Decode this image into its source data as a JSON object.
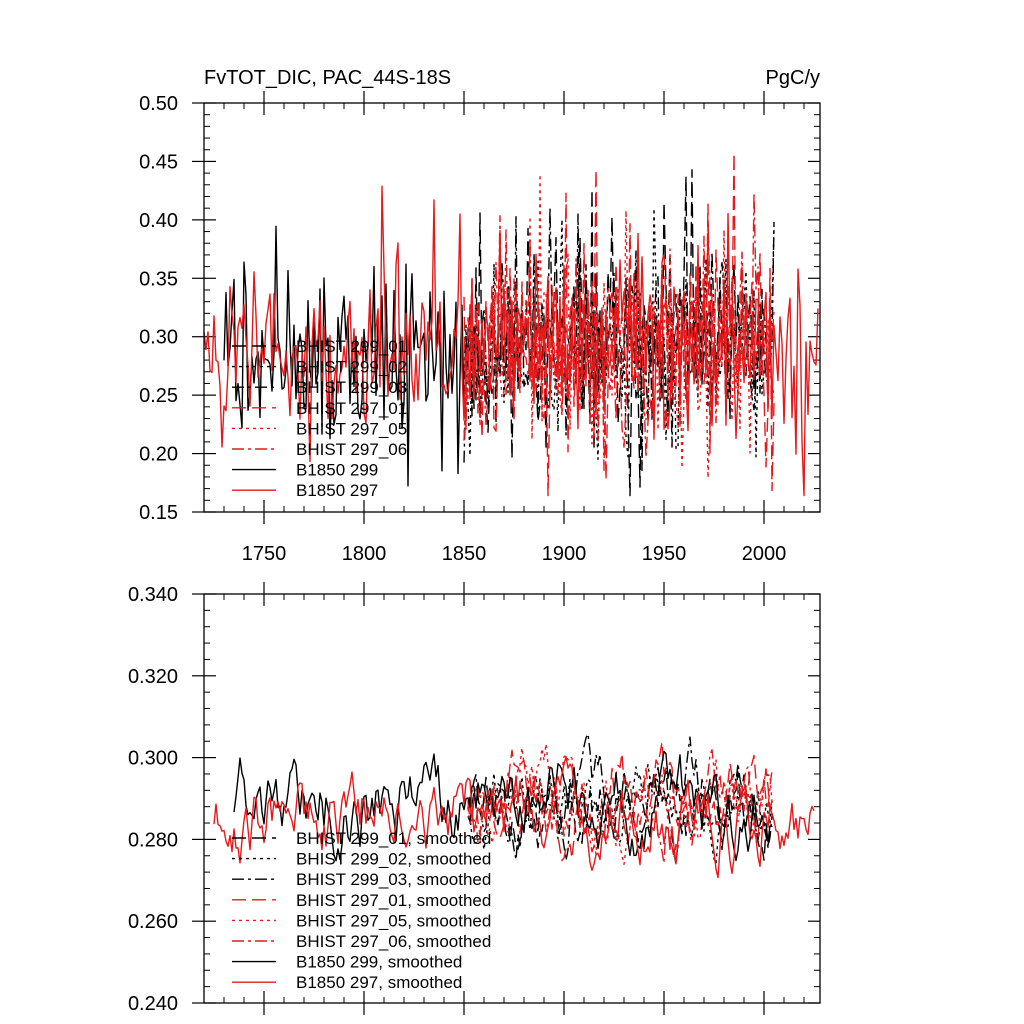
{
  "chart_data": [
    {
      "type": "line",
      "title": "FvTOT_DIC, PAC_44S-18S",
      "units": "PgC/y",
      "xlim": [
        1720,
        2028
      ],
      "ylim": [
        0.15,
        0.5
      ],
      "xticks": [
        1750,
        1800,
        1850,
        1900,
        1950,
        2000
      ],
      "xtick_labels": [
        "1750",
        "1800",
        "1850",
        "1900",
        "1950",
        "2000"
      ],
      "yticks": [
        0.15,
        0.2,
        0.25,
        0.3,
        0.35,
        0.4,
        0.45,
        0.5
      ],
      "ytick_labels": [
        "0.15",
        "0.20",
        "0.25",
        "0.30",
        "0.35",
        "0.40",
        "0.45",
        "0.50"
      ],
      "legend_position": "lower-left",
      "series": [
        {
          "name": "BHIST 299_01",
          "color": "#000000",
          "dash": "long-dash",
          "x_start": 1850,
          "x_end": 2005,
          "mean": 0.29,
          "spread": 0.055,
          "seed": 11
        },
        {
          "name": "BHIST 299_02",
          "color": "#000000",
          "dash": "dot",
          "x_start": 1850,
          "x_end": 2005,
          "mean": 0.29,
          "spread": 0.055,
          "seed": 23
        },
        {
          "name": "BHIST 299_03",
          "color": "#000000",
          "dash": "dash-dot",
          "x_start": 1850,
          "x_end": 2005,
          "mean": 0.29,
          "spread": 0.055,
          "seed": 37
        },
        {
          "name": "BHIST 297_01",
          "color": "#e41a1c",
          "dash": "long-dash",
          "x_start": 1850,
          "x_end": 2005,
          "mean": 0.29,
          "spread": 0.055,
          "seed": 41
        },
        {
          "name": "BHIST 297_05",
          "color": "#e41a1c",
          "dash": "dot",
          "x_start": 1850,
          "x_end": 2005,
          "mean": 0.29,
          "spread": 0.055,
          "seed": 53
        },
        {
          "name": "BHIST 297_06",
          "color": "#e41a1c",
          "dash": "dash-dot",
          "x_start": 1850,
          "x_end": 2005,
          "mean": 0.29,
          "spread": 0.055,
          "seed": 67
        },
        {
          "name": "B1850 299",
          "color": "#000000",
          "dash": "solid",
          "x_start": 1730,
          "x_end": 1850,
          "mean": 0.285,
          "spread": 0.05,
          "seed": 71
        },
        {
          "name": "B1850 297",
          "color": "#e41a1c",
          "dash": "solid",
          "x_start": 1720,
          "x_end": 2027,
          "mean": 0.29,
          "spread": 0.05,
          "seed": 83
        }
      ]
    },
    {
      "type": "line",
      "xlim": [
        1720,
        2028
      ],
      "ylim": [
        0.24,
        0.34
      ],
      "xticks": [
        1750,
        1800,
        1850,
        1900,
        1950,
        2000
      ],
      "yticks": [
        0.24,
        0.26,
        0.28,
        0.3,
        0.32,
        0.34
      ],
      "ytick_labels": [
        "0.240",
        "0.260",
        "0.280",
        "0.300",
        "0.320",
        "0.340"
      ],
      "legend_position": "lower-left",
      "series": [
        {
          "name": "BHIST 299_01, smoothed",
          "color": "#000000",
          "dash": "long-dash",
          "x_start": 1852,
          "x_end": 2004,
          "mean": 0.288,
          "spread": 0.01,
          "seed": 111
        },
        {
          "name": "BHIST 299_02, smoothed",
          "color": "#000000",
          "dash": "dot",
          "x_start": 1852,
          "x_end": 2004,
          "mean": 0.288,
          "spread": 0.01,
          "seed": 123
        },
        {
          "name": "BHIST 299_03, smoothed",
          "color": "#000000",
          "dash": "dash-dot",
          "x_start": 1852,
          "x_end": 2004,
          "mean": 0.29,
          "spread": 0.011,
          "seed": 137
        },
        {
          "name": "BHIST 297_01, smoothed",
          "color": "#e41a1c",
          "dash": "long-dash",
          "x_start": 1852,
          "x_end": 2004,
          "mean": 0.292,
          "spread": 0.011,
          "seed": 141
        },
        {
          "name": "BHIST 297_05, smoothed",
          "color": "#e41a1c",
          "dash": "dot",
          "x_start": 1852,
          "x_end": 2004,
          "mean": 0.29,
          "spread": 0.011,
          "seed": 153
        },
        {
          "name": "BHIST 297_06, smoothed",
          "color": "#e41a1c",
          "dash": "dash-dot",
          "x_start": 1852,
          "x_end": 2004,
          "mean": 0.291,
          "spread": 0.011,
          "seed": 167
        },
        {
          "name": "B1850 299, smoothed",
          "color": "#000000",
          "dash": "solid",
          "x_start": 1735,
          "x_end": 2003,
          "mean": 0.289,
          "spread": 0.011,
          "seed": 171
        },
        {
          "name": "B1850 297, smoothed",
          "color": "#e41a1c",
          "dash": "solid",
          "x_start": 1725,
          "x_end": 2025,
          "mean": 0.286,
          "spread": 0.011,
          "seed": 183
        }
      ]
    }
  ]
}
